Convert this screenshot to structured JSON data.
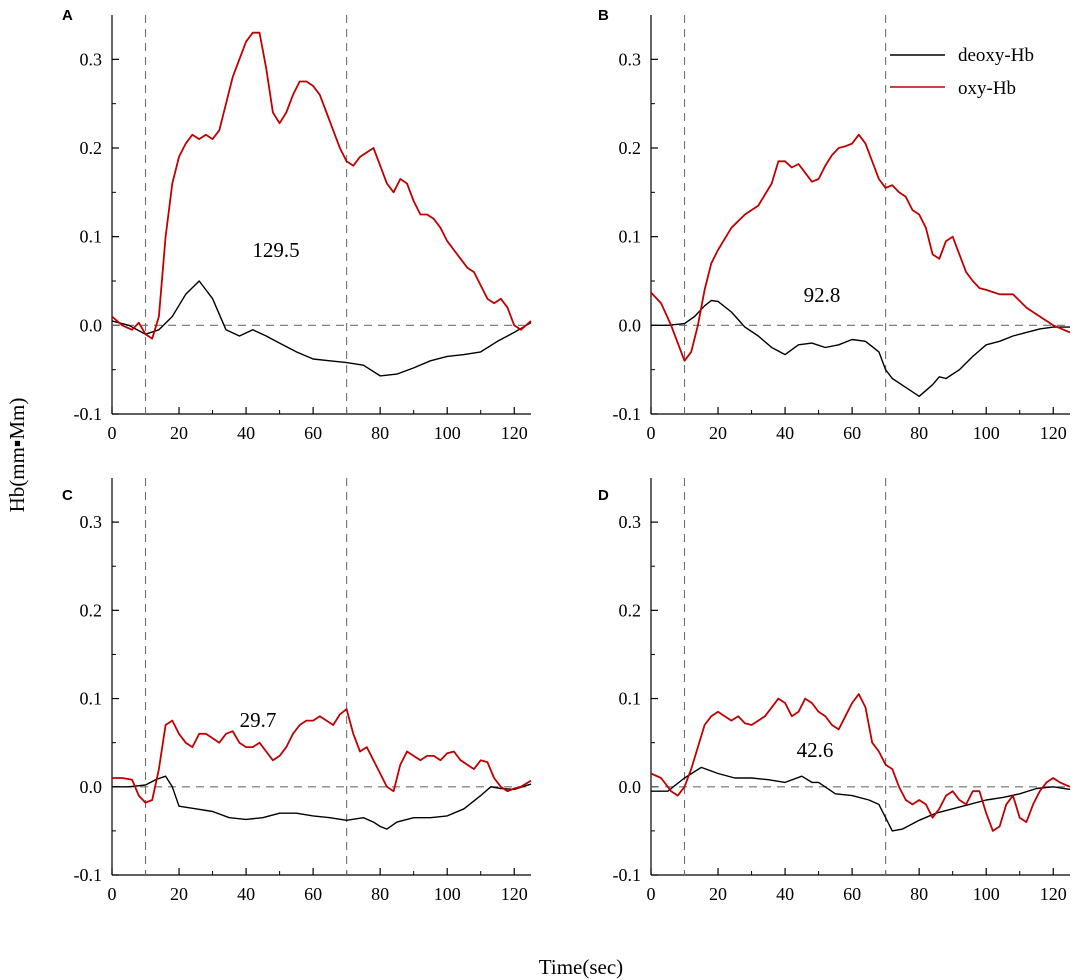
{
  "figure": {
    "ylabel": "Hb(mm▪Mm)",
    "xlabel": "Time(sec)"
  },
  "legend": {
    "entries": [
      {
        "label": "deoxy-Hb",
        "color": "#000000"
      },
      {
        "label": "oxy-Hb",
        "color": "#c00000"
      }
    ]
  },
  "chart_data": [
    {
      "type": "line",
      "panel": "A",
      "xlim": [
        0,
        125
      ],
      "ylim": [
        -0.1,
        0.35
      ],
      "xticks": [
        "0",
        "20",
        "40",
        "60",
        "80",
        "100",
        "120"
      ],
      "yticks": [
        "-0.1",
        "0.0",
        "0.1",
        "0.2",
        "0.3"
      ],
      "vlines": [
        10,
        70
      ],
      "hline": 0,
      "annotation": "129.5",
      "series": [
        {
          "name": "deoxy-Hb",
          "color": "#000000",
          "x": [
            0,
            5,
            10,
            14,
            18,
            22,
            26,
            30,
            34,
            38,
            42,
            46,
            50,
            55,
            60,
            65,
            70,
            75,
            80,
            85,
            90,
            95,
            100,
            105,
            110,
            115,
            120,
            125
          ],
          "y": [
            0.005,
            0.0,
            -0.01,
            -0.005,
            0.01,
            0.035,
            0.05,
            0.03,
            -0.005,
            -0.012,
            -0.005,
            -0.012,
            -0.02,
            -0.03,
            -0.038,
            -0.04,
            -0.042,
            -0.045,
            -0.057,
            -0.055,
            -0.048,
            -0.04,
            -0.035,
            -0.033,
            -0.03,
            -0.018,
            -0.008,
            0.003
          ]
        },
        {
          "name": "oxy-Hb",
          "color": "#c00000",
          "x": [
            0,
            3,
            6,
            8,
            10,
            12,
            14,
            16,
            18,
            20,
            22,
            24,
            26,
            28,
            30,
            32,
            34,
            36,
            38,
            40,
            42,
            44,
            46,
            48,
            50,
            52,
            54,
            56,
            58,
            60,
            62,
            64,
            66,
            68,
            70,
            72,
            74,
            76,
            78,
            80,
            82,
            84,
            86,
            88,
            90,
            92,
            94,
            96,
            98,
            100,
            102,
            104,
            106,
            108,
            110,
            112,
            114,
            116,
            118,
            120,
            122,
            125
          ],
          "y": [
            0.01,
            0.0,
            -0.005,
            0.003,
            -0.01,
            -0.015,
            0.01,
            0.1,
            0.16,
            0.19,
            0.205,
            0.215,
            0.21,
            0.215,
            0.21,
            0.22,
            0.25,
            0.28,
            0.3,
            0.32,
            0.33,
            0.33,
            0.29,
            0.24,
            0.228,
            0.24,
            0.26,
            0.275,
            0.275,
            0.27,
            0.26,
            0.24,
            0.22,
            0.2,
            0.185,
            0.18,
            0.19,
            0.195,
            0.2,
            0.18,
            0.16,
            0.15,
            0.165,
            0.16,
            0.14,
            0.125,
            0.125,
            0.12,
            0.11,
            0.095,
            0.085,
            0.075,
            0.065,
            0.06,
            0.045,
            0.03,
            0.025,
            0.03,
            0.02,
            0.0,
            -0.005,
            0.005
          ]
        }
      ]
    },
    {
      "type": "line",
      "panel": "B",
      "xlim": [
        0,
        125
      ],
      "ylim": [
        -0.1,
        0.35
      ],
      "xticks": [
        "0",
        "20",
        "40",
        "60",
        "80",
        "100",
        "120"
      ],
      "yticks": [
        "-0.1",
        "0.0",
        "0.1",
        "0.2",
        "0.3"
      ],
      "vlines": [
        10,
        70
      ],
      "hline": 0,
      "annotation": "92.8",
      "series": [
        {
          "name": "deoxy-Hb",
          "color": "#000000",
          "x": [
            0,
            5,
            10,
            13,
            16,
            18,
            20,
            24,
            28,
            32,
            36,
            40,
            44,
            48,
            52,
            56,
            60,
            64,
            68,
            70,
            72,
            76,
            80,
            84,
            86,
            88,
            92,
            96,
            100,
            104,
            108,
            112,
            116,
            120,
            125
          ],
          "y": [
            0.0,
            0.0,
            0.002,
            0.01,
            0.022,
            0.028,
            0.027,
            0.015,
            -0.002,
            -0.012,
            -0.025,
            -0.033,
            -0.022,
            -0.02,
            -0.025,
            -0.022,
            -0.016,
            -0.018,
            -0.03,
            -0.05,
            -0.06,
            -0.07,
            -0.08,
            -0.067,
            -0.058,
            -0.06,
            -0.05,
            -0.035,
            -0.022,
            -0.018,
            -0.012,
            -0.008,
            -0.004,
            -0.002,
            -0.002
          ]
        },
        {
          "name": "oxy-Hb",
          "color": "#c00000",
          "x": [
            0,
            3,
            6,
            8,
            10,
            12,
            14,
            16,
            18,
            20,
            24,
            28,
            32,
            36,
            38,
            40,
            42,
            44,
            46,
            48,
            50,
            52,
            54,
            56,
            58,
            60,
            62,
            64,
            66,
            68,
            70,
            72,
            74,
            76,
            78,
            80,
            82,
            84,
            86,
            88,
            90,
            92,
            94,
            96,
            98,
            100,
            104,
            108,
            112,
            116,
            120,
            125
          ],
          "y": [
            0.037,
            0.025,
            0.0,
            -0.02,
            -0.04,
            -0.03,
            0.0,
            0.04,
            0.07,
            0.085,
            0.11,
            0.125,
            0.135,
            0.16,
            0.185,
            0.185,
            0.178,
            0.182,
            0.172,
            0.162,
            0.165,
            0.18,
            0.192,
            0.2,
            0.202,
            0.205,
            0.215,
            0.205,
            0.185,
            0.165,
            0.155,
            0.158,
            0.15,
            0.145,
            0.13,
            0.125,
            0.11,
            0.08,
            0.075,
            0.095,
            0.1,
            0.08,
            0.06,
            0.05,
            0.042,
            0.04,
            0.035,
            0.035,
            0.02,
            0.01,
            0.0,
            -0.008
          ]
        }
      ]
    },
    {
      "type": "line",
      "panel": "C",
      "xlim": [
        0,
        125
      ],
      "ylim": [
        -0.1,
        0.35
      ],
      "xticks": [
        "0",
        "20",
        "40",
        "60",
        "80",
        "100",
        "120"
      ],
      "yticks": [
        "-0.1",
        "0.0",
        "0.1",
        "0.2",
        "0.3"
      ],
      "vlines": [
        10,
        70
      ],
      "hline": 0,
      "annotation": "29.7",
      "series": [
        {
          "name": "deoxy-Hb",
          "color": "#000000",
          "x": [
            0,
            5,
            10,
            13,
            16,
            18,
            20,
            25,
            30,
            35,
            40,
            45,
            50,
            55,
            60,
            65,
            70,
            75,
            78,
            80,
            82,
            85,
            90,
            95,
            100,
            105,
            110,
            113,
            116,
            120,
            125
          ],
          "y": [
            0.0,
            0.0,
            0.002,
            0.008,
            0.012,
            0.0,
            -0.022,
            -0.025,
            -0.028,
            -0.035,
            -0.037,
            -0.035,
            -0.03,
            -0.03,
            -0.033,
            -0.035,
            -0.038,
            -0.035,
            -0.04,
            -0.045,
            -0.048,
            -0.04,
            -0.035,
            -0.035,
            -0.033,
            -0.025,
            -0.01,
            0.0,
            -0.002,
            -0.003,
            0.003
          ]
        },
        {
          "name": "oxy-Hb",
          "color": "#c00000",
          "x": [
            0,
            3,
            6,
            8,
            10,
            12,
            14,
            16,
            18,
            20,
            22,
            24,
            26,
            28,
            30,
            32,
            34,
            36,
            38,
            40,
            42,
            44,
            46,
            48,
            50,
            52,
            54,
            56,
            58,
            60,
            62,
            64,
            66,
            68,
            70,
            72,
            74,
            76,
            78,
            80,
            82,
            84,
            86,
            88,
            90,
            92,
            94,
            96,
            98,
            100,
            102,
            104,
            106,
            108,
            110,
            112,
            114,
            116,
            118,
            120,
            122,
            125
          ],
          "y": [
            0.01,
            0.01,
            0.008,
            -0.01,
            -0.018,
            -0.015,
            0.02,
            0.07,
            0.075,
            0.06,
            0.05,
            0.045,
            0.06,
            0.06,
            0.055,
            0.05,
            0.06,
            0.063,
            0.05,
            0.045,
            0.045,
            0.05,
            0.04,
            0.03,
            0.035,
            0.045,
            0.06,
            0.07,
            0.075,
            0.075,
            0.08,
            0.075,
            0.07,
            0.082,
            0.088,
            0.06,
            0.04,
            0.045,
            0.03,
            0.015,
            0.0,
            -0.005,
            0.025,
            0.04,
            0.035,
            0.03,
            0.035,
            0.035,
            0.03,
            0.038,
            0.04,
            0.03,
            0.025,
            0.02,
            0.03,
            0.028,
            0.01,
            0.0,
            -0.005,
            -0.002,
            0.0,
            0.007
          ]
        }
      ]
    },
    {
      "type": "line",
      "panel": "D",
      "xlim": [
        0,
        125
      ],
      "ylim": [
        -0.1,
        0.35
      ],
      "xticks": [
        "0",
        "20",
        "40",
        "60",
        "80",
        "100",
        "120"
      ],
      "yticks": [
        "-0.1",
        "0.0",
        "0.1",
        "0.2",
        "0.3"
      ],
      "vlines": [
        10,
        70
      ],
      "hline": 0,
      "annotation": "42.6",
      "series": [
        {
          "name": "deoxy-Hb",
          "color": "#000000",
          "x": [
            0,
            5,
            10,
            15,
            20,
            25,
            30,
            35,
            40,
            45,
            48,
            50,
            55,
            60,
            65,
            68,
            70,
            72,
            75,
            80,
            85,
            90,
            95,
            100,
            105,
            110,
            115,
            120,
            125
          ],
          "y": [
            -0.005,
            -0.005,
            0.01,
            0.022,
            0.015,
            0.01,
            0.01,
            0.008,
            0.005,
            0.012,
            0.005,
            0.005,
            -0.008,
            -0.01,
            -0.015,
            -0.02,
            -0.035,
            -0.05,
            -0.048,
            -0.038,
            -0.03,
            -0.025,
            -0.02,
            -0.015,
            -0.012,
            -0.008,
            -0.002,
            0.0,
            -0.003
          ]
        },
        {
          "name": "oxy-Hb",
          "color": "#c00000",
          "x": [
            0,
            3,
            6,
            8,
            10,
            12,
            14,
            16,
            18,
            20,
            22,
            24,
            26,
            28,
            30,
            32,
            34,
            36,
            38,
            40,
            42,
            44,
            46,
            48,
            50,
            52,
            54,
            56,
            58,
            60,
            62,
            64,
            66,
            68,
            70,
            72,
            74,
            76,
            78,
            80,
            82,
            84,
            86,
            88,
            90,
            92,
            94,
            96,
            98,
            100,
            102,
            104,
            106,
            108,
            110,
            112,
            114,
            116,
            118,
            120,
            122,
            125
          ],
          "y": [
            0.015,
            0.01,
            -0.005,
            -0.01,
            0.0,
            0.02,
            0.045,
            0.07,
            0.08,
            0.085,
            0.08,
            0.075,
            0.08,
            0.072,
            0.07,
            0.075,
            0.08,
            0.09,
            0.1,
            0.095,
            0.08,
            0.085,
            0.1,
            0.095,
            0.085,
            0.08,
            0.07,
            0.065,
            0.08,
            0.095,
            0.105,
            0.09,
            0.05,
            0.04,
            0.025,
            0.02,
            0.0,
            -0.015,
            -0.02,
            -0.015,
            -0.02,
            -0.035,
            -0.025,
            -0.01,
            -0.005,
            -0.015,
            -0.02,
            -0.005,
            -0.005,
            -0.03,
            -0.05,
            -0.045,
            -0.02,
            -0.01,
            -0.035,
            -0.04,
            -0.02,
            -0.005,
            0.005,
            0.01,
            0.005,
            0.0
          ]
        }
      ]
    }
  ]
}
